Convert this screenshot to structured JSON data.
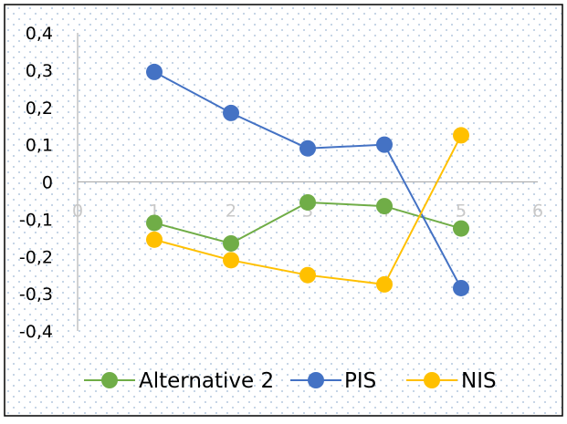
{
  "chart_data": {
    "type": "scatter",
    "title": "",
    "xlabel": "",
    "ylabel": "",
    "xlim": [
      0,
      6
    ],
    "ylim": [
      -0.4,
      0.4
    ],
    "x_ticks": [
      "0",
      "1",
      "2",
      "3",
      "4",
      "5",
      "6"
    ],
    "y_ticks": [
      "0,4",
      "0,3",
      "0,2",
      "0,1",
      "0",
      "-0,1",
      "-0,2",
      "-0,3",
      "-0,4"
    ],
    "grid": "dotted",
    "legend_position": "bottom",
    "series": [
      {
        "name": "Alternative 2",
        "color": "#70AD47",
        "x": [
          1,
          2,
          3,
          4,
          5
        ],
        "y": [
          -0.11,
          -0.165,
          -0.055,
          -0.065,
          -0.125
        ]
      },
      {
        "name": "PIS",
        "color": "#4472C4",
        "x": [
          1,
          2,
          3,
          4,
          5
        ],
        "y": [
          0.295,
          0.185,
          0.09,
          0.1,
          -0.285
        ]
      },
      {
        "name": "NIS",
        "color": "#FFC000",
        "x": [
          1,
          2,
          3,
          4,
          5
        ],
        "y": [
          -0.155,
          -0.21,
          -0.25,
          -0.275,
          0.125
        ]
      }
    ]
  }
}
